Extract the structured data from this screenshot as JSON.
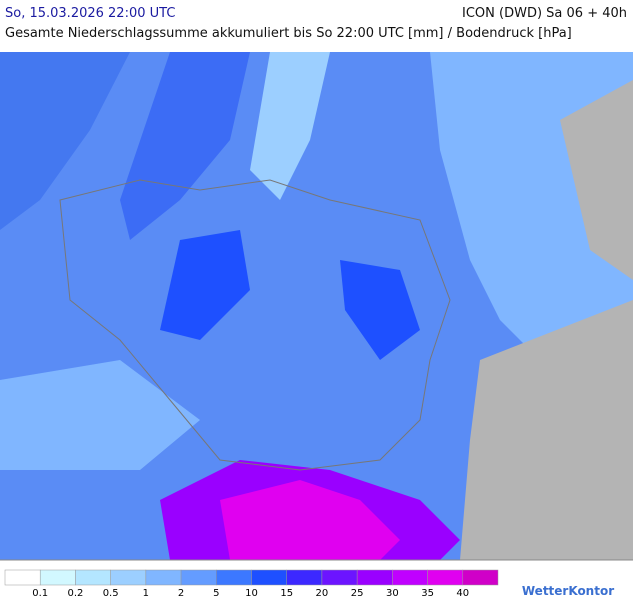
{
  "header": {
    "date": "So, 15.03.2026 22:00 UTC",
    "model": "ICON (DWD) Sa 06 + 40h",
    "subtitle": "Gesamte Niederschlagssumme akkumuliert bis So 22:00 UTC [mm] / Bodendruck [hPa]"
  },
  "legend": {
    "labels": [
      "0.1",
      "0.2",
      "0.5",
      "1",
      "2",
      "5",
      "10",
      "15",
      "20",
      "25",
      "30",
      "35",
      "40"
    ],
    "colors": [
      "#ffffff",
      "#d2f8ff",
      "#b4e6ff",
      "#9ccfff",
      "#80b6ff",
      "#649cff",
      "#3c78ff",
      "#1e50ff",
      "#3c28ff",
      "#6c14ff",
      "#9a00ff",
      "#c000ff",
      "#e000f0",
      "#d000c8"
    ]
  },
  "logo": "WetterKontor"
}
